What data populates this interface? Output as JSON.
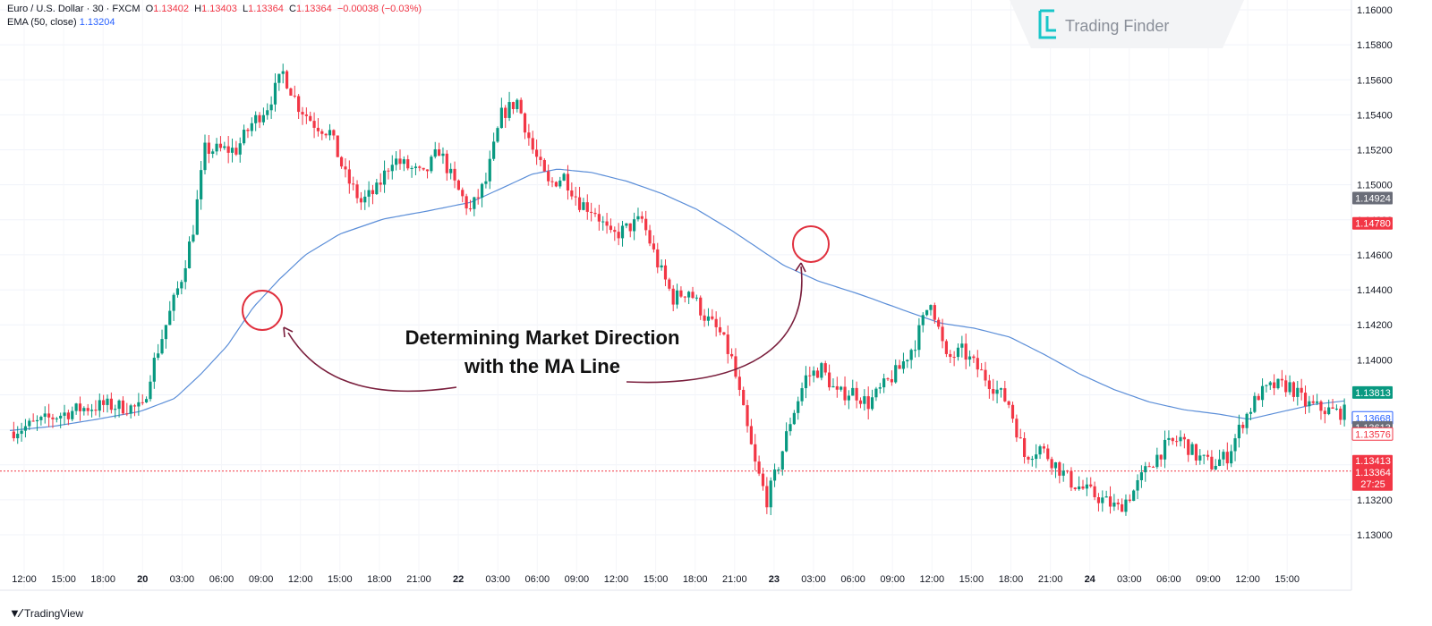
{
  "header": {
    "symbol": "Euro / U.S. Dollar · 30 · FXCM",
    "ohlc": {
      "o_label": "O",
      "o": "1.13402",
      "h_label": "H",
      "h": "1.13403",
      "l_label": "L",
      "l": "1.13364",
      "c_label": "C",
      "c": "1.13364",
      "change": "−0.00038 (−0.03%)"
    },
    "ema_label": "EMA (50, close)",
    "ema_value": "1.13204"
  },
  "branding": {
    "watermark": "Trading Finder",
    "footer": "TradingView"
  },
  "annotation": {
    "line1": "Determining Market Direction",
    "line2": "with the MA Line"
  },
  "colors": {
    "up": "#089981",
    "down": "#f23645",
    "ema": "#5b8ed8",
    "annotation": "#7a1f3d",
    "circle": "#e0303e"
  },
  "chart_data": {
    "type": "candlestick",
    "symbol": "EURUSD",
    "timeframe": "30",
    "ylim": [
      1.129,
      1.161
    ],
    "y_ticks": [
      "1.13000",
      "1.13200",
      "1.13400",
      "1.13600",
      "1.13800",
      "1.14000",
      "1.14200",
      "1.14400",
      "1.14600",
      "1.14800",
      "1.15000",
      "1.15200",
      "1.15400",
      "1.15600",
      "1.15800",
      "1.16000"
    ],
    "x_ticks": [
      "12:00",
      "15:00",
      "18:00",
      "20",
      "03:00",
      "06:00",
      "09:00",
      "12:00",
      "15:00",
      "18:00",
      "21:00",
      "22",
      "03:00",
      "06:00",
      "09:00",
      "12:00",
      "15:00",
      "18:00",
      "21:00",
      "23",
      "03:00",
      "06:00",
      "09:00",
      "12:00",
      "15:00",
      "18:00",
      "21:00",
      "24",
      "03:00",
      "06:00",
      "09:00",
      "12:00",
      "15:00"
    ],
    "x_tick_bold": [
      "20",
      "22",
      "23",
      "24"
    ],
    "price_labels": [
      {
        "text": "1.14924",
        "value": 1.14924,
        "bg": "#6a6d78"
      },
      {
        "text": "1.14780",
        "value": 1.1478,
        "bg": "#f23645"
      },
      {
        "text": "1.13813",
        "value": 1.13813,
        "bg": "#089981"
      },
      {
        "text": "1.13668",
        "value": 1.13668,
        "bg": "#ffffff",
        "fg": "#2962ff",
        "border": "#2962ff"
      },
      {
        "text": "1.13613",
        "value": 1.13613,
        "bg": "#6a6d78"
      },
      {
        "text": "1.13576",
        "value": 1.13576,
        "bg": "#ffffff",
        "fg": "#f23645",
        "border": "#f23645"
      }
    ],
    "current_price": {
      "a": "1.13413",
      "b": "1.13364",
      "countdown": "27:25",
      "value": 1.13364,
      "bg": "#f23645"
    },
    "ema_points": [
      {
        "i": 0,
        "v": 1.13596
      },
      {
        "i": 10,
        "v": 1.1362
      },
      {
        "i": 20,
        "v": 1.1366
      },
      {
        "i": 30,
        "v": 1.13705
      },
      {
        "i": 38,
        "v": 1.1378
      },
      {
        "i": 44,
        "v": 1.1392
      },
      {
        "i": 50,
        "v": 1.1408
      },
      {
        "i": 56,
        "v": 1.143
      },
      {
        "i": 62,
        "v": 1.1446
      },
      {
        "i": 68,
        "v": 1.146
      },
      {
        "i": 76,
        "v": 1.1472
      },
      {
        "i": 86,
        "v": 1.14805
      },
      {
        "i": 96,
        "v": 1.1485
      },
      {
        "i": 106,
        "v": 1.149
      },
      {
        "i": 114,
        "v": 1.1499
      },
      {
        "i": 120,
        "v": 1.1506
      },
      {
        "i": 126,
        "v": 1.1509
      },
      {
        "i": 134,
        "v": 1.1507
      },
      {
        "i": 142,
        "v": 1.1502
      },
      {
        "i": 150,
        "v": 1.1495
      },
      {
        "i": 158,
        "v": 1.1486
      },
      {
        "i": 166,
        "v": 1.1474
      },
      {
        "i": 172,
        "v": 1.1464
      },
      {
        "i": 178,
        "v": 1.1454
      },
      {
        "i": 186,
        "v": 1.1445
      },
      {
        "i": 196,
        "v": 1.1437
      },
      {
        "i": 206,
        "v": 1.1428
      },
      {
        "i": 214,
        "v": 1.1421
      },
      {
        "i": 222,
        "v": 1.1418
      },
      {
        "i": 230,
        "v": 1.1413
      },
      {
        "i": 238,
        "v": 1.1403
      },
      {
        "i": 246,
        "v": 1.1392
      },
      {
        "i": 254,
        "v": 1.1383
      },
      {
        "i": 262,
        "v": 1.1376
      },
      {
        "i": 270,
        "v": 1.13715
      },
      {
        "i": 278,
        "v": 1.1369
      },
      {
        "i": 285,
        "v": 1.1366
      },
      {
        "i": 292,
        "v": 1.137
      },
      {
        "i": 300,
        "v": 1.13745
      },
      {
        "i": 307,
        "v": 1.13765
      }
    ],
    "closes_anchor": [
      {
        "i": 0,
        "v": 1.1359
      },
      {
        "i": 6,
        "v": 1.1363
      },
      {
        "i": 12,
        "v": 1.1368
      },
      {
        "i": 18,
        "v": 1.1372
      },
      {
        "i": 24,
        "v": 1.1374
      },
      {
        "i": 30,
        "v": 1.1373
      },
      {
        "i": 34,
        "v": 1.1372
      },
      {
        "i": 36,
        "v": 1.1392
      },
      {
        "i": 40,
        "v": 1.142
      },
      {
        "i": 44,
        "v": 1.1447
      },
      {
        "i": 47,
        "v": 1.1475
      },
      {
        "i": 50,
        "v": 1.152
      },
      {
        "i": 54,
        "v": 1.152
      },
      {
        "i": 58,
        "v": 1.152
      },
      {
        "i": 62,
        "v": 1.1535
      },
      {
        "i": 66,
        "v": 1.1545
      },
      {
        "i": 70,
        "v": 1.1564
      },
      {
        "i": 74,
        "v": 1.1545
      },
      {
        "i": 78,
        "v": 1.1535
      },
      {
        "i": 82,
        "v": 1.153
      },
      {
        "i": 86,
        "v": 1.1505
      },
      {
        "i": 90,
        "v": 1.149
      },
      {
        "i": 94,
        "v": 1.1497
      },
      {
        "i": 98,
        "v": 1.1515
      },
      {
        "i": 102,
        "v": 1.151
      },
      {
        "i": 106,
        "v": 1.1505
      },
      {
        "i": 110,
        "v": 1.152
      },
      {
        "i": 114,
        "v": 1.15
      },
      {
        "i": 118,
        "v": 1.1485
      },
      {
        "i": 122,
        "v": 1.1502
      },
      {
        "i": 126,
        "v": 1.154
      },
      {
        "i": 130,
        "v": 1.1548
      },
      {
        "i": 134,
        "v": 1.152
      },
      {
        "i": 138,
        "v": 1.15
      },
      {
        "i": 142,
        "v": 1.1505
      },
      {
        "i": 146,
        "v": 1.149
      },
      {
        "i": 150,
        "v": 1.1485
      },
      {
        "i": 154,
        "v": 1.147
      },
      {
        "i": 158,
        "v": 1.1475
      },
      {
        "i": 162,
        "v": 1.148
      },
      {
        "i": 166,
        "v": 1.1455
      },
      {
        "i": 170,
        "v": 1.1435
      },
      {
        "i": 174,
        "v": 1.144
      },
      {
        "i": 178,
        "v": 1.1425
      },
      {
        "i": 182,
        "v": 1.1415
      },
      {
        "i": 185,
        "v": 1.14
      },
      {
        "i": 188,
        "v": 1.137
      },
      {
        "i": 191,
        "v": 1.134
      },
      {
        "i": 194,
        "v": 1.132
      },
      {
        "i": 197,
        "v": 1.134
      },
      {
        "i": 200,
        "v": 1.1365
      },
      {
        "i": 204,
        "v": 1.139
      },
      {
        "i": 208,
        "v": 1.1395
      },
      {
        "i": 212,
        "v": 1.138
      },
      {
        "i": 216,
        "v": 1.1382
      },
      {
        "i": 220,
        "v": 1.1375
      },
      {
        "i": 224,
        "v": 1.1385
      },
      {
        "i": 228,
        "v": 1.1395
      },
      {
        "i": 232,
        "v": 1.141
      },
      {
        "i": 236,
        "v": 1.1435
      },
      {
        "i": 240,
        "v": 1.14
      },
      {
        "i": 244,
        "v": 1.1405
      },
      {
        "i": 248,
        "v": 1.1395
      },
      {
        "i": 252,
        "v": 1.1385
      },
      {
        "i": 256,
        "v": 1.1375
      },
      {
        "i": 260,
        "v": 1.1345
      },
      {
        "i": 264,
        "v": 1.135
      },
      {
        "i": 268,
        "v": 1.134
      },
      {
        "i": 272,
        "v": 1.133
      },
      {
        "i": 276,
        "v": 1.1325
      },
      {
        "i": 280,
        "v": 1.132
      },
      {
        "i": 284,
        "v": 1.1315
      },
      {
        "i": 288,
        "v": 1.1325
      },
      {
        "i": 292,
        "v": 1.134
      },
      {
        "i": 296,
        "v": 1.135
      },
      {
        "i": 300,
        "v": 1.1355
      },
      {
        "i": 304,
        "v": 1.1345
      },
      {
        "i": 308,
        "v": 1.134
      },
      {
        "i": 312,
        "v": 1.1345
      },
      {
        "i": 316,
        "v": 1.1365
      },
      {
        "i": 320,
        "v": 1.138
      },
      {
        "i": 324,
        "v": 1.1385
      },
      {
        "i": 328,
        "v": 1.1385
      },
      {
        "i": 332,
        "v": 1.1375
      },
      {
        "i": 336,
        "v": 1.1372
      },
      {
        "i": 340,
        "v": 1.137
      },
      {
        "i": 342,
        "v": 1.137
      }
    ]
  }
}
